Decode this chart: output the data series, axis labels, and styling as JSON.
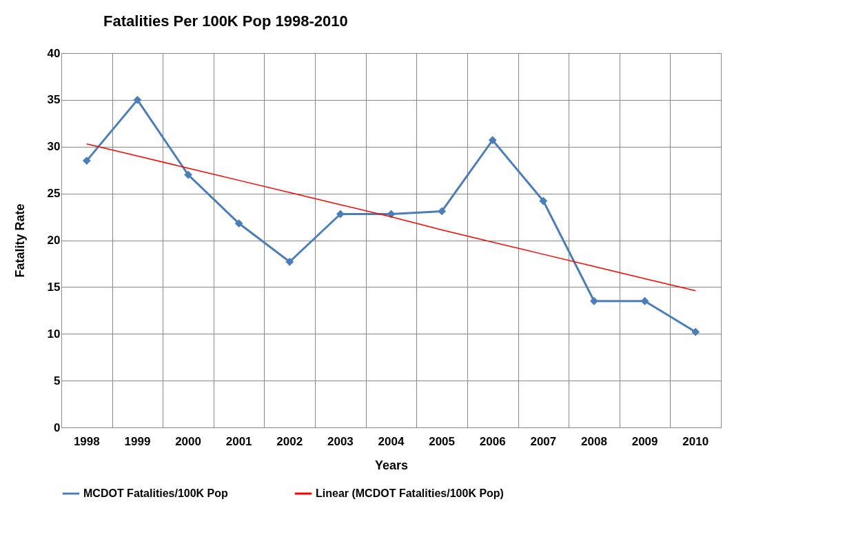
{
  "chart_data": {
    "type": "line",
    "title": "Fatalities Per 100K Pop 1998-2010",
    "xlabel": "Years",
    "ylabel": "Fatality Rate",
    "categories": [
      "1998",
      "1999",
      "2000",
      "2001",
      "2002",
      "2003",
      "2004",
      "2005",
      "2006",
      "2007",
      "2008",
      "2009",
      "2010"
    ],
    "series": [
      {
        "name": "MCDOT Fatalities/100K Pop",
        "color": "#4a7ebb",
        "marker": "diamond",
        "values": [
          28.5,
          35.0,
          27.0,
          21.8,
          17.7,
          22.8,
          22.8,
          23.1,
          30.7,
          24.2,
          13.5,
          13.5,
          10.2
        ]
      },
      {
        "name": "Linear (MCDOT Fatalities/100K Pop)",
        "color": "#ff0000",
        "marker": "none",
        "values": [
          30.3,
          29.0,
          27.7,
          26.4,
          25.1,
          23.8,
          22.5,
          21.1,
          19.8,
          18.5,
          17.2,
          15.9,
          14.6
        ]
      }
    ],
    "ylim": [
      0,
      40
    ],
    "yticks": [
      0,
      5,
      10,
      15,
      20,
      25,
      30,
      35,
      40
    ],
    "grid": true,
    "legend": "bottom"
  }
}
